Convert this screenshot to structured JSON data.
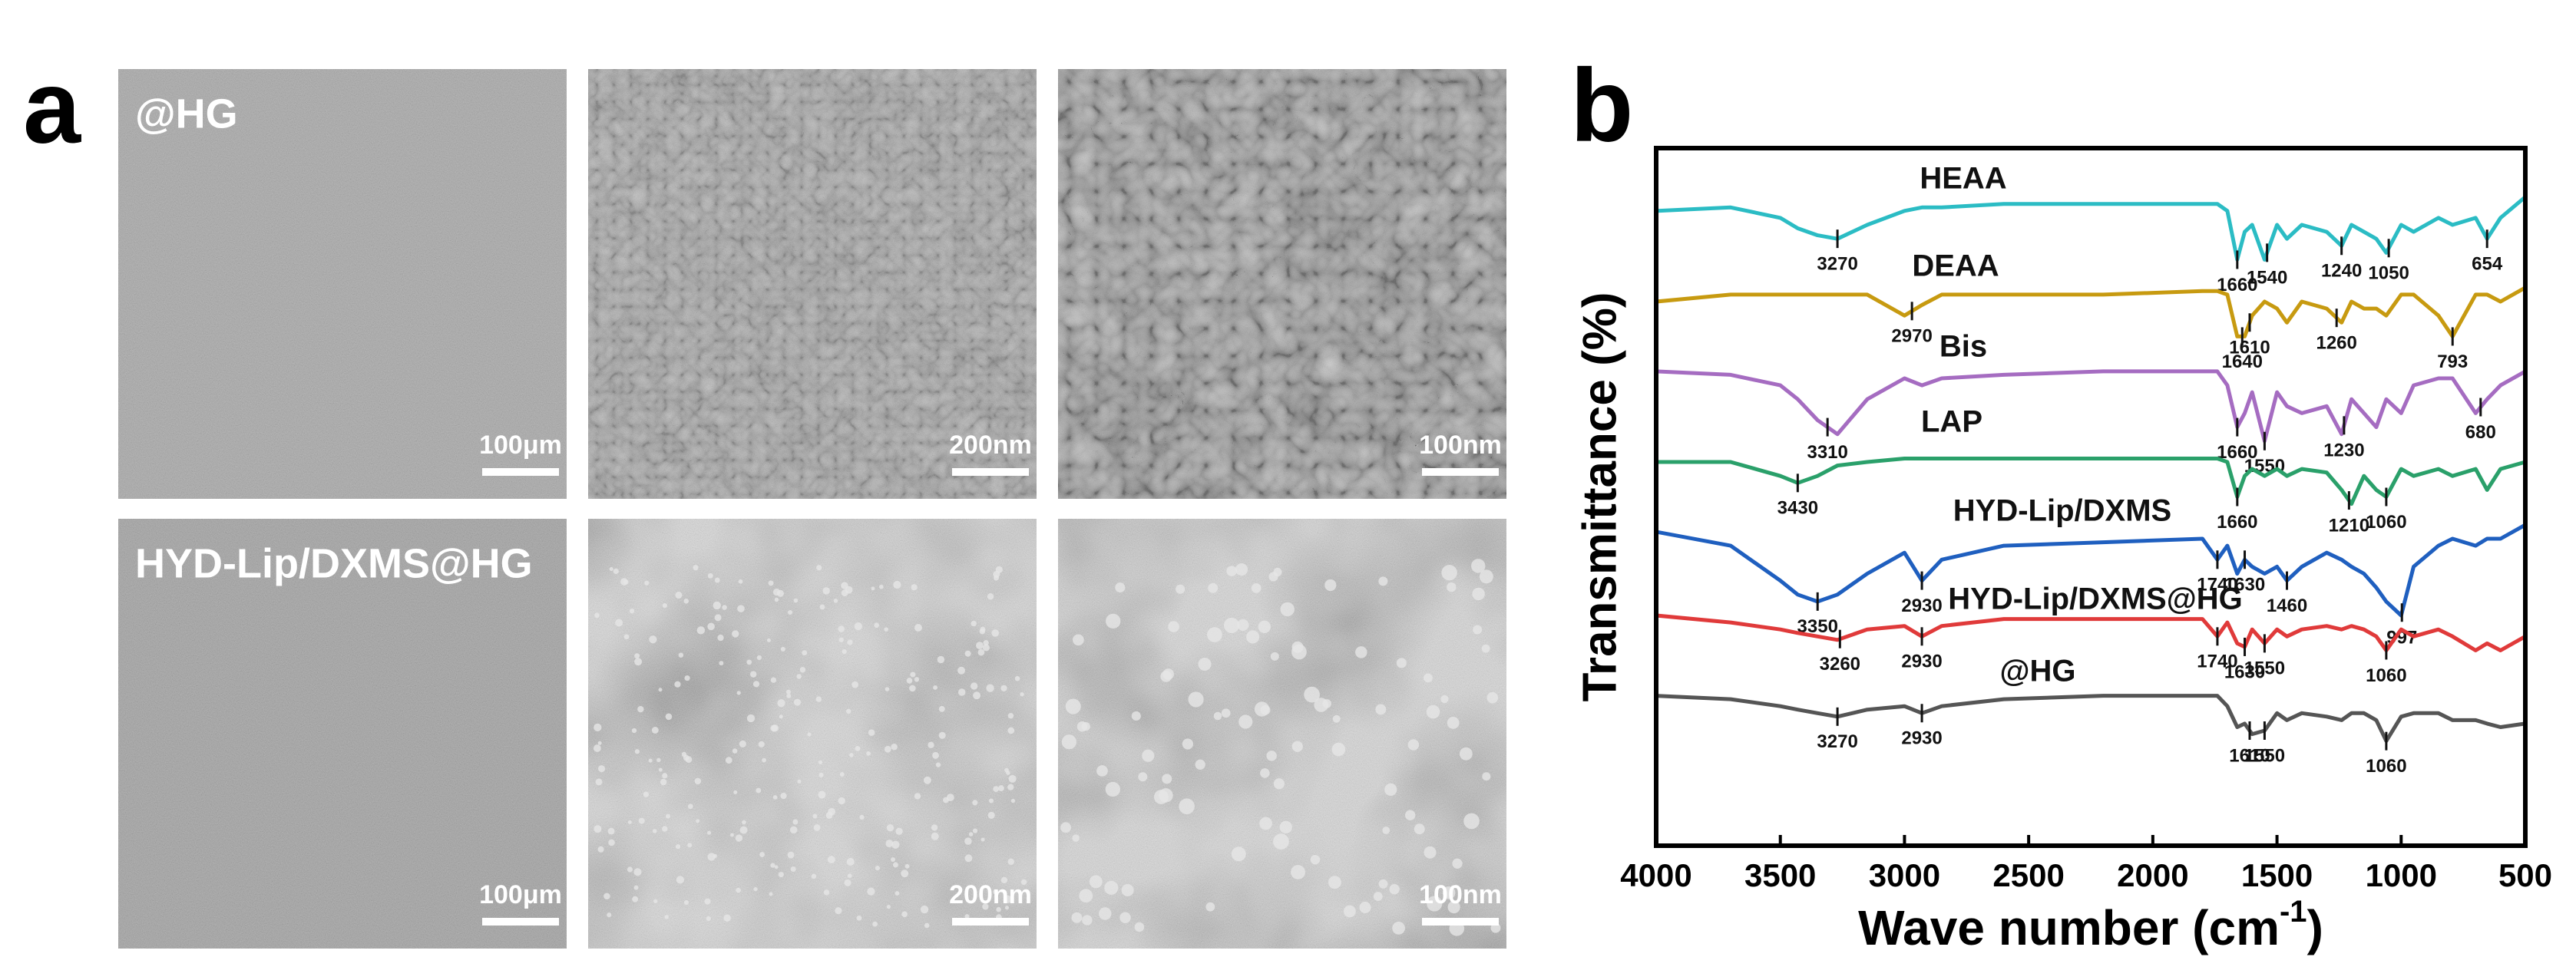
{
  "panel_a": {
    "label": "a",
    "rows": [
      {
        "label": "@HG",
        "scale_bars": [
          "100μm",
          "200nm",
          "100nm"
        ]
      },
      {
        "label": "HYD-Lip/DXMS@HG",
        "scale_bars": [
          "100μm",
          "200nm",
          "100nm"
        ]
      }
    ]
  },
  "panel_b": {
    "label": "b"
  },
  "chart_data": {
    "type": "line",
    "xlabel": "Wave number (cm",
    "xlabel_sup": "-1",
    "xlabel_end": ")",
    "ylabel": "Transmittance (%)",
    "xlim": [
      4000,
      500
    ],
    "xticks": [
      4000,
      3500,
      3000,
      2500,
      2000,
      1500,
      1000,
      500
    ],
    "ylim": [
      0,
      100
    ],
    "x": [
      4000,
      3700,
      3500,
      3430,
      3350,
      3270,
      3150,
      3000,
      2930,
      2850,
      2600,
      2200,
      1800,
      1740,
      1700,
      1660,
      1630,
      1600,
      1550,
      1500,
      1460,
      1400,
      1300,
      1240,
      1200,
      1150,
      1100,
      1060,
      1000,
      950,
      850,
      793,
      700,
      654,
      600,
      500
    ],
    "series": [
      {
        "name": "HEAA",
        "color": "#2bbcc4",
        "peaks": [
          3270,
          1660,
          1540,
          1240,
          1050,
          654
        ],
        "values": [
          91,
          91.5,
          90,
          88.5,
          87.5,
          87,
          89,
          91,
          91.5,
          91.5,
          92,
          92,
          92,
          92,
          91,
          84,
          88,
          89,
          84,
          89,
          87,
          89,
          88,
          86,
          89,
          88,
          87,
          85,
          89,
          88,
          90,
          89,
          90,
          87,
          90,
          93
        ]
      },
      {
        "name": "DEAA",
        "color": "#c79a10",
        "peaks": [
          2970,
          1640,
          1610,
          1260,
          793
        ],
        "values": [
          78,
          79,
          79,
          79,
          79,
          79,
          79,
          76,
          77.5,
          79,
          79,
          79,
          79.5,
          79.5,
          79,
          73,
          73,
          76,
          78,
          77,
          75,
          78,
          77,
          75,
          78,
          77,
          77,
          76,
          79,
          79,
          76,
          73,
          79,
          79,
          78,
          80
        ]
      },
      {
        "name": "Bis",
        "color": "#a56cc1",
        "peaks": [
          3310,
          1660,
          1550,
          1230,
          680
        ],
        "values": [
          68,
          67.5,
          66,
          64,
          61,
          59,
          64,
          67,
          66,
          67,
          67.5,
          68,
          68,
          68,
          66,
          60,
          62,
          65,
          58,
          65,
          63,
          62,
          63,
          59,
          64,
          62,
          60,
          64,
          62,
          66,
          67,
          67,
          62,
          64,
          66,
          68
        ]
      },
      {
        "name": "LAP",
        "color": "#2aa06a",
        "peaks": [
          3430,
          1660,
          1210,
          1060
        ],
        "values": [
          55,
          55,
          53,
          52,
          53,
          54.5,
          55,
          55.5,
          55.5,
          55.5,
          55.5,
          55.5,
          55.5,
          55.5,
          55,
          50,
          53,
          54,
          53,
          54,
          53,
          54,
          53.5,
          51,
          49,
          53,
          51,
          50,
          54,
          53,
          54,
          53,
          54,
          51,
          54,
          55
        ]
      },
      {
        "name": "HYD-Lip/DXMS",
        "color": "#1f5fbf",
        "peaks": [
          3350,
          2930,
          1740,
          1630,
          1460,
          997
        ],
        "values": [
          45,
          43,
          38,
          36,
          35,
          36,
          39,
          42,
          38,
          41,
          43,
          43.5,
          44,
          41,
          43,
          39,
          41,
          40,
          39,
          40,
          38,
          40,
          42,
          41,
          40,
          39,
          37,
          35,
          33,
          40,
          43,
          44,
          43,
          44,
          44,
          46
        ]
      },
      {
        "name": "HYD-Lip/DXMS@HG",
        "color": "#e03a3a",
        "peaks": [
          3260,
          2930,
          1740,
          1630,
          1550,
          1060
        ],
        "values": [
          33,
          32,
          31,
          30.5,
          30,
          29.5,
          31,
          31.5,
          30,
          31.5,
          32.5,
          32.5,
          32.5,
          30,
          32,
          29,
          28.5,
          31,
          29,
          31,
          30,
          31,
          31.5,
          31,
          31.5,
          31,
          30,
          28,
          31,
          30,
          31,
          30,
          28,
          29,
          28,
          30
        ]
      },
      {
        "name": "@HG",
        "color": "#555555",
        "peaks": [
          3270,
          2930,
          1610,
          1550,
          1060
        ],
        "values": [
          21.5,
          21,
          20,
          19.5,
          19,
          18.5,
          19.5,
          20,
          19,
          20,
          21,
          21.5,
          21.5,
          21.5,
          20,
          17,
          17.5,
          16,
          16.5,
          19,
          18,
          19,
          18.5,
          18,
          19,
          19,
          18,
          15,
          18.5,
          19,
          19,
          18,
          18,
          17.5,
          17,
          17.5
        ]
      }
    ]
  }
}
